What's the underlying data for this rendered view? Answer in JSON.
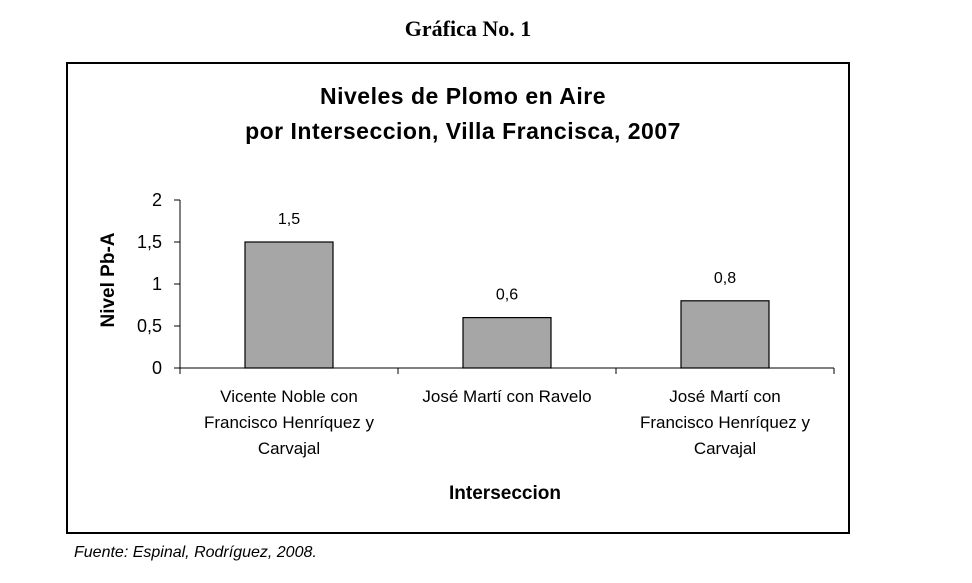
{
  "figure": {
    "heading": "Gráfica No. 1",
    "source": "Fuente: Espinal, Rodríguez, 2008."
  },
  "chart_data": {
    "type": "bar",
    "title": [
      "Niveles de Plomo en Aire",
      "por Interseccion, Villa Francisca, 2007"
    ],
    "xlabel": "Interseccion",
    "ylabel": "Nivel Pb-A",
    "ylim": [
      0,
      2
    ],
    "yticks": [
      0,
      0.5,
      1,
      1.5,
      2
    ],
    "ytick_labels": [
      "0",
      "0,5",
      "1",
      "1,5",
      "2"
    ],
    "categories": [
      [
        "Vicente Noble con",
        "Francisco Henríquez y",
        "Carvajal"
      ],
      [
        "José Martí con Ravelo"
      ],
      [
        "José Martí con",
        "Francisco Henríquez y",
        "Carvajal"
      ]
    ],
    "values": [
      1.5,
      0.6,
      0.8
    ],
    "value_labels": [
      "1,5",
      "0,6",
      "0,8"
    ],
    "bar_color": "#a6a6a6",
    "bar_edge_color": "#000000",
    "grid": false,
    "legend": "none"
  }
}
